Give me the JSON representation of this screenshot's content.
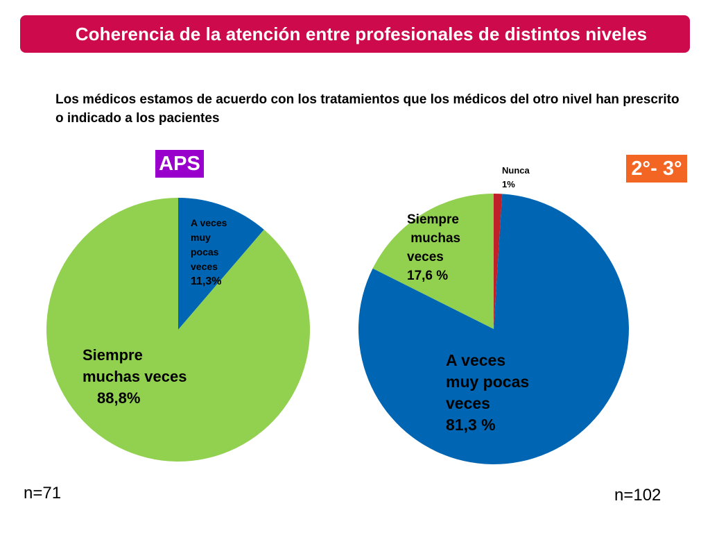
{
  "header": {
    "title": "Coherencia de la atención entre profesionales de distintos niveles",
    "banner_color": "#cc0a4c"
  },
  "subtitle": "Los médicos estamos de acuerdo con los tratamientos que los médicos del otro nivel han prescrito o indicado a los pacientes",
  "colors": {
    "blue": "#0066b3",
    "green": "#92d050",
    "red": "#c0202a",
    "purple": "#9900cc",
    "orange": "#f26522"
  },
  "chart_data": [
    {
      "type": "pie",
      "title": "APS",
      "badge_color": "#9900cc",
      "n": "n=71",
      "slices": [
        {
          "label_lines": [
            "A veces",
            "muy",
            "pocas",
            "veces"
          ],
          "value_text": "11,3%",
          "value": 11.3,
          "color": "#0066b3"
        },
        {
          "label_lines": [
            "Siempre",
            "muchas veces"
          ],
          "value_text": "88,8%",
          "value": 88.8,
          "color": "#92d050"
        }
      ]
    },
    {
      "type": "pie",
      "title": "2°- 3°",
      "badge_color": "#f26522",
      "n": "n=102",
      "slices": [
        {
          "label_lines": [
            "Nunca"
          ],
          "value_text": "1%",
          "value": 1,
          "color": "#c0202a"
        },
        {
          "label_lines": [
            "A veces",
            "muy pocas",
            "veces"
          ],
          "value_text": "81,3 %",
          "value": 81.3,
          "color": "#0066b3"
        },
        {
          "label_lines": [
            "Siempre",
            " muchas",
            "veces"
          ],
          "value_text": "17,6 %",
          "value": 17.6,
          "color": "#92d050"
        }
      ]
    }
  ]
}
